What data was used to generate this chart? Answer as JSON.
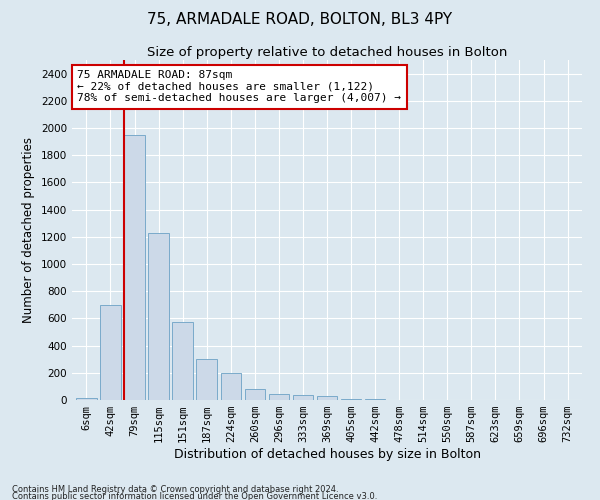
{
  "title1": "75, ARMADALE ROAD, BOLTON, BL3 4PY",
  "title2": "Size of property relative to detached houses in Bolton",
  "xlabel": "Distribution of detached houses by size in Bolton",
  "ylabel": "Number of detached properties",
  "bins": [
    "6sqm",
    "42sqm",
    "79sqm",
    "115sqm",
    "151sqm",
    "187sqm",
    "224sqm",
    "260sqm",
    "296sqm",
    "333sqm",
    "369sqm",
    "405sqm",
    "442sqm",
    "478sqm",
    "514sqm",
    "550sqm",
    "587sqm",
    "623sqm",
    "659sqm",
    "696sqm",
    "732sqm"
  ],
  "values": [
    15,
    700,
    1950,
    1230,
    575,
    300,
    200,
    80,
    45,
    35,
    30,
    5,
    5,
    3,
    2,
    1,
    0,
    0,
    0,
    0,
    0
  ],
  "bar_color": "#ccd9e8",
  "bar_edge_color": "#7aaaca",
  "red_line_bin_index": 2,
  "annotation_text": "75 ARMADALE ROAD: 87sqm\n← 22% of detached houses are smaller (1,122)\n78% of semi-detached houses are larger (4,007) →",
  "annotation_box_color": "#ffffff",
  "annotation_box_edge": "#cc0000",
  "red_line_color": "#cc0000",
  "ylim": [
    0,
    2500
  ],
  "yticks": [
    0,
    200,
    400,
    600,
    800,
    1000,
    1200,
    1400,
    1600,
    1800,
    2000,
    2200,
    2400
  ],
  "footer1": "Contains HM Land Registry data © Crown copyright and database right 2024.",
  "footer2": "Contains public sector information licensed under the Open Government Licence v3.0.",
  "bg_color": "#dce8f0",
  "plot_bg_color": "#dce8f0",
  "grid_color": "#ffffff",
  "title1_fontsize": 11,
  "title2_fontsize": 9.5,
  "xlabel_fontsize": 9,
  "ylabel_fontsize": 8.5
}
